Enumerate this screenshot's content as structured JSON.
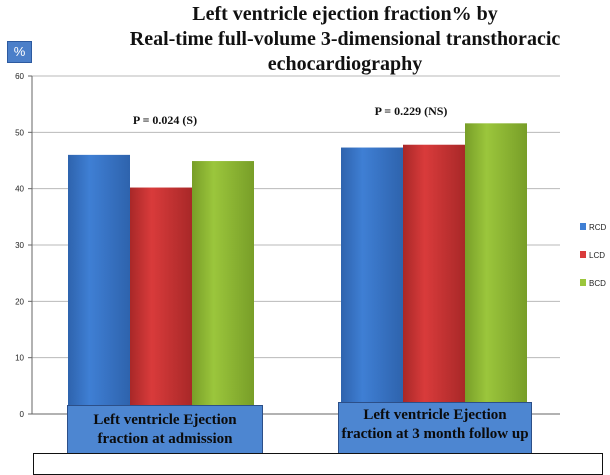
{
  "header": {
    "title_lines": [
      "Left ventricle ejection fraction% by",
      "Real-time full-volume 3-dimensional transthoracic",
      "echocardiography"
    ],
    "unit_label": "%"
  },
  "chart_data": {
    "type": "bar",
    "title": "Left ventricle ejection fraction% by Real-time full-volume 3-dimensional transthoracic echocardiography",
    "ylabel": "%",
    "ylim": [
      0,
      60
    ],
    "yticks": [
      0,
      10,
      20,
      30,
      40,
      50,
      60
    ],
    "grid": true,
    "legend_position": "right",
    "categories": [
      "Left ventricle Ejection fraction at admission",
      "Left ventricle Ejection fraction at 3 month follow up"
    ],
    "series": [
      {
        "name": "RCD",
        "color": "#3f7fd4",
        "values": [
          46.0,
          47.3
        ]
      },
      {
        "name": "LCD",
        "color": "#d93b3b",
        "values": [
          40.2,
          47.8
        ]
      },
      {
        "name": "BCD",
        "color": "#9bc63c",
        "values": [
          44.9,
          51.6
        ]
      }
    ],
    "annotations": [
      "P = 0.024 (S)",
      "P = 0.229 (NS)"
    ]
  }
}
